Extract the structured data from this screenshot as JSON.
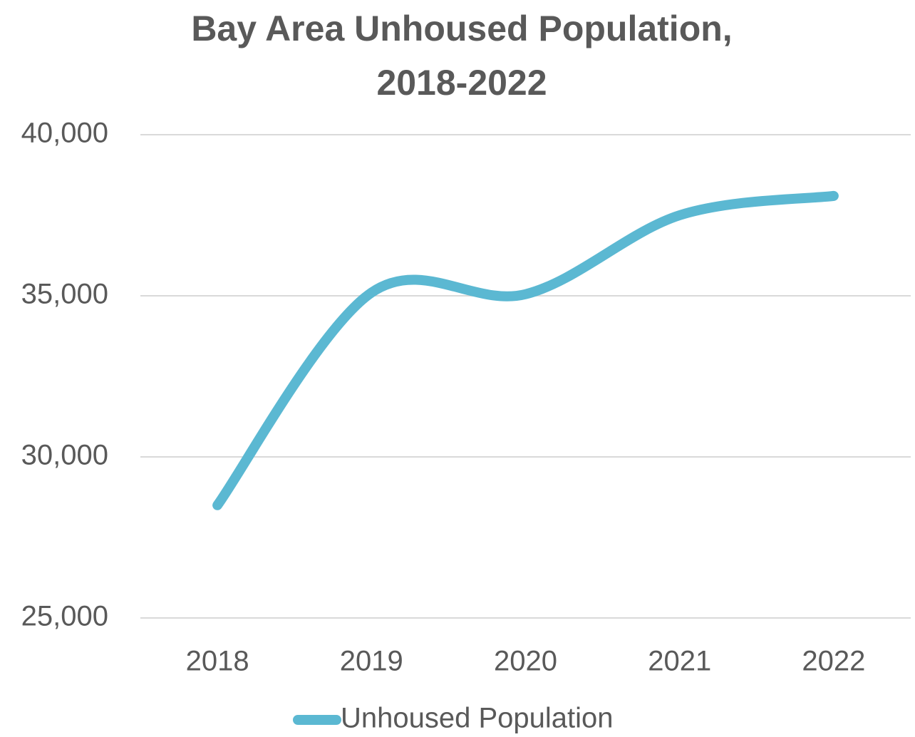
{
  "chart_data": {
    "type": "line",
    "title": "Bay Area Unhoused Population, 2018-2022",
    "categories": [
      "2018",
      "2019",
      "2020",
      "2021",
      "2022"
    ],
    "series": [
      {
        "name": "Unhoused Population",
        "color": "#5bb8d2",
        "values": [
          28500,
          35100,
          35050,
          37500,
          38100
        ]
      }
    ],
    "ylim": [
      25000,
      40000
    ],
    "yticks": [
      {
        "value": 25000,
        "label": "25,000"
      },
      {
        "value": 30000,
        "label": "30,000"
      },
      {
        "value": 35000,
        "label": "35,000"
      },
      {
        "value": 40000,
        "label": "40,000"
      }
    ],
    "grid": true,
    "smooth": true,
    "legend": "bottom"
  }
}
